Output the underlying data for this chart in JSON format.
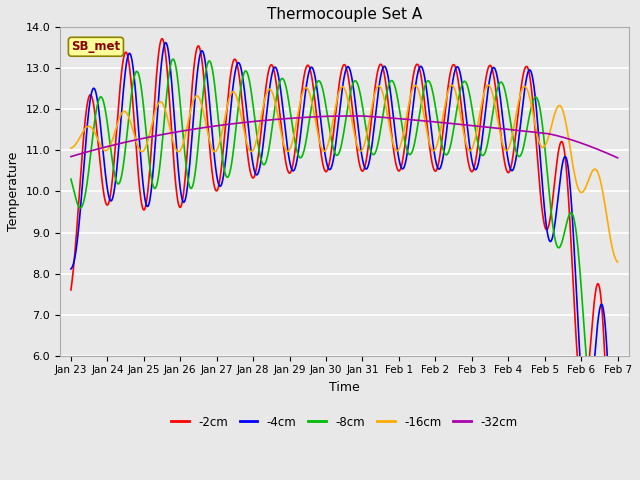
{
  "title": "Thermocouple Set A",
  "xlabel": "Time",
  "ylabel": "Temperature",
  "ylim": [
    6.0,
    14.0
  ],
  "yticks": [
    6.0,
    7.0,
    8.0,
    9.0,
    10.0,
    11.0,
    12.0,
    13.0,
    14.0
  ],
  "x_labels": [
    "Jan 23",
    "Jan 24",
    "Jan 25",
    "Jan 26",
    "Jan 27",
    "Jan 28",
    "Jan 29",
    "Jan 30",
    "Jan 31",
    "Feb 1",
    "Feb 2",
    "Feb 3",
    "Feb 4",
    "Feb 5",
    "Feb 6",
    "Feb 7"
  ],
  "background_color": "#e8e8e8",
  "plot_bg_color": "#e8e8e8",
  "grid_color": "#ffffff",
  "annotation_text": "SB_met",
  "annotation_bg": "#ffff99",
  "annotation_border": "#8b8000",
  "legend_entries": [
    "-2cm",
    "-4cm",
    "-8cm",
    "-16cm",
    "-32cm"
  ],
  "line_colors": [
    "#ff0000",
    "#0000ff",
    "#00bb00",
    "#ffaa00",
    "#aa00aa"
  ],
  "line_width": 1.2
}
